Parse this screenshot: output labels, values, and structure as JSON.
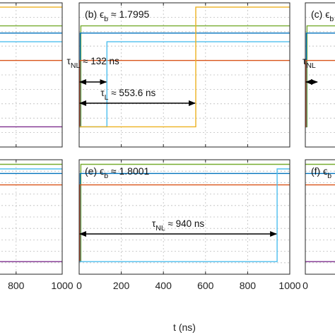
{
  "chart_data": {
    "type": "line",
    "xlabel": "t (ns)",
    "xlim": [
      0,
      1000
    ],
    "xticks": [
      0,
      200,
      400,
      600,
      800,
      1000
    ],
    "grid": true,
    "colors": {
      "blue": "#0072BD",
      "orange": "#D95319",
      "yellow": "#EDB120",
      "purple": "#7E2F8E",
      "green": "#77AC30",
      "cyan": "#4DBEEE"
    },
    "panels": [
      {
        "id": "a",
        "label": "",
        "series": [
          {
            "color": "yellow",
            "x": [
              0,
              1000
            ],
            "y": [
              0.97,
              0.97
            ]
          },
          {
            "color": "green",
            "x": [
              0,
              1000
            ],
            "y": [
              0.84,
              0.84
            ]
          },
          {
            "color": "blue",
            "x": [
              0,
              1000
            ],
            "y": [
              0.79,
              0.79
            ]
          },
          {
            "color": "cyan",
            "x": [
              0,
              1000
            ],
            "y": [
              0.73,
              0.73
            ]
          },
          {
            "color": "orange",
            "x": [
              0,
              1000
            ],
            "y": [
              0.6,
              0.6
            ]
          },
          {
            "color": "purple",
            "x": [
              0,
              1000
            ],
            "y": [
              0.14,
              0.14
            ]
          }
        ],
        "annotations": []
      },
      {
        "id": "b",
        "label": "(b) ϵ_b ≈ 1.7995",
        "series": [
          {
            "color": "green",
            "x": [
              0,
              8,
              8,
              1000
            ],
            "y": [
              0.14,
              0.14,
              0.84,
              0.84
            ]
          },
          {
            "color": "blue",
            "x": [
              0,
              5,
              5,
              1000
            ],
            "y": [
              0.14,
              0.14,
              0.79,
              0.79
            ]
          },
          {
            "color": "orange",
            "x": [
              0,
              3,
              3,
              1000
            ],
            "y": [
              0.14,
              0.14,
              0.6,
              0.6
            ]
          },
          {
            "color": "cyan",
            "x": [
              0,
              132,
              132,
              1000
            ],
            "y": [
              0.14,
              0.14,
              0.73,
              0.73
            ]
          },
          {
            "color": "yellow",
            "x": [
              0,
              553.6,
              553.6,
              1000
            ],
            "y": [
              0.14,
              0.14,
              0.97,
              0.97
            ]
          }
        ],
        "annotations": [
          {
            "text": "τ_NL ≈ 132 ns",
            "from": 0,
            "to": 132
          },
          {
            "text": "τ_L ≈ 553.6 ns",
            "from": 0,
            "to": 553.6
          }
        ]
      },
      {
        "id": "c",
        "label": "(c) ϵ_b",
        "series": [
          {
            "color": "green",
            "x": [
              0,
              8,
              8,
              1000
            ],
            "y": [
              0.14,
              0.14,
              0.84,
              0.84
            ]
          },
          {
            "color": "blue",
            "x": [
              0,
              5,
              5,
              1000
            ],
            "y": [
              0.14,
              0.14,
              0.79,
              0.79
            ]
          },
          {
            "color": "orange",
            "x": [
              0,
              3,
              3,
              1000
            ],
            "y": [
              0.14,
              0.14,
              0.6,
              0.6
            ]
          }
        ],
        "annotations": [
          {
            "text": "τ_NL",
            "from": 0,
            "to": 60
          }
        ]
      },
      {
        "id": "d",
        "label": "",
        "series": [
          {
            "color": "green",
            "x": [
              0,
              1000
            ],
            "y": [
              0.96,
              0.96
            ]
          },
          {
            "color": "cyan",
            "x": [
              0,
              1000
            ],
            "y": [
              0.92,
              0.92
            ]
          },
          {
            "color": "blue",
            "x": [
              0,
              1000
            ],
            "y": [
              0.88,
              0.88
            ]
          },
          {
            "color": "orange",
            "x": [
              0,
              1000
            ],
            "y": [
              0.78,
              0.78
            ]
          },
          {
            "color": "purple",
            "x": [
              0,
              1000
            ],
            "y": [
              0.11,
              0.11
            ]
          }
        ],
        "annotations": []
      },
      {
        "id": "e",
        "label": "(e) ϵ_b ≈ 1.8001",
        "series": [
          {
            "color": "green",
            "x": [
              0,
              8,
              8,
              1000
            ],
            "y": [
              0.11,
              0.11,
              0.96,
              0.96
            ]
          },
          {
            "color": "blue",
            "x": [
              0,
              5,
              5,
              1000
            ],
            "y": [
              0.11,
              0.11,
              0.88,
              0.88
            ]
          },
          {
            "color": "orange",
            "x": [
              0,
              3,
              3,
              1000
            ],
            "y": [
              0.11,
              0.11,
              0.78,
              0.78
            ]
          },
          {
            "color": "cyan",
            "x": [
              0,
              940,
              940,
              1000
            ],
            "y": [
              0.11,
              0.11,
              0.92,
              0.92
            ]
          }
        ],
        "annotations": [
          {
            "text": "τ_NL ≈ 940 ns",
            "from": 0,
            "to": 940
          }
        ]
      },
      {
        "id": "f",
        "label": "(f) ϵ_b",
        "series": [
          {
            "color": "green",
            "x": [
              0,
              1000
            ],
            "y": [
              0.96,
              0.96
            ]
          },
          {
            "color": "blue",
            "x": [
              0,
              1000
            ],
            "y": [
              0.88,
              0.88
            ]
          },
          {
            "color": "orange",
            "x": [
              0,
              1000
            ],
            "y": [
              0.78,
              0.78
            ]
          },
          {
            "color": "purple",
            "x": [
              0,
              1000
            ],
            "y": [
              0.11,
              0.11
            ]
          }
        ],
        "annotations": []
      }
    ]
  }
}
